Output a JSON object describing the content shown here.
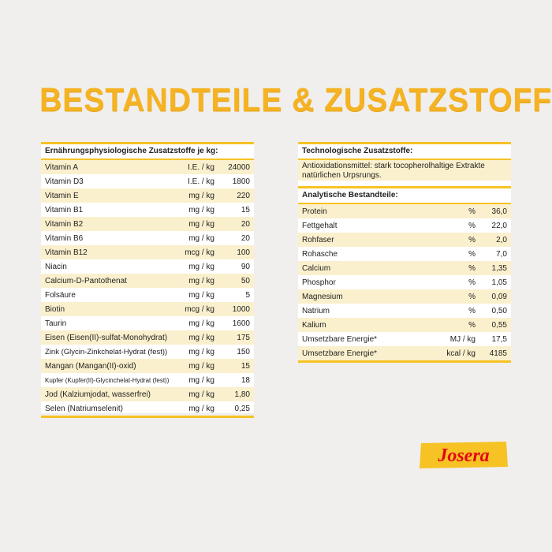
{
  "title": "BESTANDTEILE & ZUSATZSTOFFE",
  "nutritional_additives": {
    "header": "Ernährungsphysiologische Zusatzstoffe je kg:",
    "rows": [
      {
        "name": "Vitamin A",
        "unit": "I.E. / kg",
        "value": "24000"
      },
      {
        "name": "Vitamin D3",
        "unit": "I.E. / kg",
        "value": "1800"
      },
      {
        "name": "Vitamin E",
        "unit": "mg / kg",
        "value": "220"
      },
      {
        "name": "Vitamin B1",
        "unit": "mg / kg",
        "value": "15"
      },
      {
        "name": "Vitamin B2",
        "unit": "mg / kg",
        "value": "20"
      },
      {
        "name": "Vitamin B6",
        "unit": "mg / kg",
        "value": "20"
      },
      {
        "name": "Vitamin B12",
        "unit": "mcg / kg",
        "value": "100"
      },
      {
        "name": "Niacin",
        "unit": "mg / kg",
        "value": "90"
      },
      {
        "name": "Calcium-D-Pantothenat",
        "unit": "mg / kg",
        "value": "50"
      },
      {
        "name": "Folsäure",
        "unit": "mg / kg",
        "value": "5"
      },
      {
        "name": "Biotin",
        "unit": "mcg / kg",
        "value": "1000"
      },
      {
        "name": "Taurin",
        "unit": "mg / kg",
        "value": "1600"
      },
      {
        "name": "Eisen (Eisen(II)-sulfat-Monohydrat)",
        "unit": "mg / kg",
        "value": "175"
      },
      {
        "name": "Zink (Glycin-Zinkchelat-Hydrat (fest))",
        "unit": "mg / kg",
        "value": "150"
      },
      {
        "name": "Mangan (Mangan(II)-oxid)",
        "unit": "mg / kg",
        "value": "15"
      },
      {
        "name": "Kupfer (Kupfer(II)-Glycinchelat-Hydrat (fest))",
        "unit": "mg / kg",
        "value": "18"
      },
      {
        "name": "Jod (Kalziumjodat, wasserfrei)",
        "unit": "mg / kg",
        "value": "1,80"
      },
      {
        "name": "Selen (Natriumselenit)",
        "unit": "mg / kg",
        "value": "0,25"
      }
    ]
  },
  "technological_additives": {
    "header": "Technologische Zusatzstoffe:",
    "text": "Antioxidationsmittel: stark tocopherolhaltige Extrakte natürlichen Urpsrungs."
  },
  "analytical_constituents": {
    "header": "Analytische Bestandteile:",
    "rows": [
      {
        "name": "Protein",
        "unit": "%",
        "value": "36,0"
      },
      {
        "name": "Fettgehalt",
        "unit": "%",
        "value": "22,0"
      },
      {
        "name": "Rohfaser",
        "unit": "%",
        "value": "2,0"
      },
      {
        "name": "Rohasche",
        "unit": "%",
        "value": "7,0"
      },
      {
        "name": "Calcium",
        "unit": "%",
        "value": "1,35"
      },
      {
        "name": "Phosphor",
        "unit": "%",
        "value": "1,05"
      },
      {
        "name": "Magnesium",
        "unit": "%",
        "value": "0,09"
      },
      {
        "name": "Natrium",
        "unit": "%",
        "value": "0,50"
      },
      {
        "name": "Kalium",
        "unit": "%",
        "value": "0,55"
      },
      {
        "name": "Umsetzbare Energie*",
        "unit": "MJ / kg",
        "value": "17,5"
      },
      {
        "name": "Umsetzbare Energie*",
        "unit": "kcal / kg",
        "value": "4185"
      }
    ]
  },
  "brand": {
    "name": "Josera",
    "color": "#e30613",
    "badge_color": "#f6c224"
  },
  "colors": {
    "accent": "#f6c224",
    "title": "#f5b324",
    "row_alt": "#fbf0cd"
  }
}
